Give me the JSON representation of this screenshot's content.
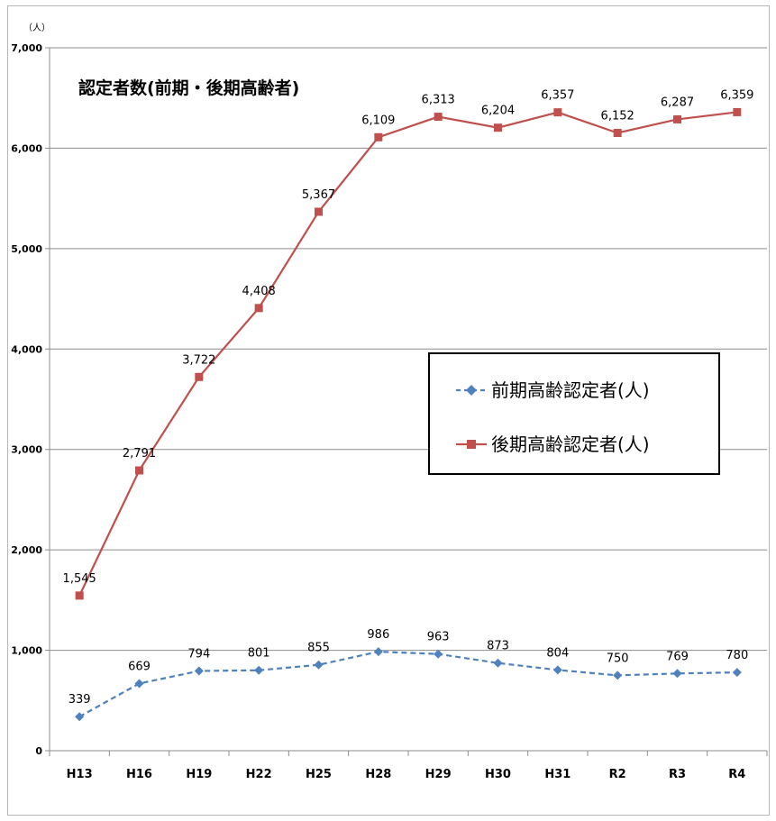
{
  "chart_data": {
    "type": "line",
    "title": "認定者数(前期・後期高齢者)",
    "yunit": "（人）",
    "ylim": [
      0,
      7000
    ],
    "yticks": [
      "0",
      "1,000",
      "2,000",
      "3,000",
      "4,000",
      "5,000",
      "6,000",
      "7,000"
    ],
    "categories": [
      "H13",
      "H16",
      "H19",
      "H22",
      "H25",
      "H28",
      "H29",
      "H30",
      "H31",
      "R2",
      "R3",
      "R4"
    ],
    "legend_position": "right-middle",
    "series": [
      {
        "name": "前期高齢認定者(人)",
        "color": "#4f81bd",
        "line_style": "dashed",
        "marker": "diamond",
        "values": [
          339,
          669,
          794,
          801,
          855,
          986,
          963,
          873,
          804,
          750,
          769,
          780
        ],
        "labels": [
          "339",
          "669",
          "794",
          "801",
          "855",
          "986",
          "963",
          "873",
          "804",
          "750",
          "769",
          "780"
        ]
      },
      {
        "name": "後期高齢認定者(人)",
        "color": "#c0504d",
        "line_style": "solid",
        "marker": "square",
        "values": [
          1545,
          2791,
          3722,
          4408,
          5367,
          6109,
          6313,
          6204,
          6357,
          6152,
          6287,
          6359
        ],
        "labels": [
          "1,545",
          "2,791",
          "3,722",
          "4,408",
          "5,367",
          "6,109",
          "6,313",
          "6,204",
          "6,357",
          "6,152",
          "6,287",
          "6,359"
        ]
      }
    ]
  }
}
